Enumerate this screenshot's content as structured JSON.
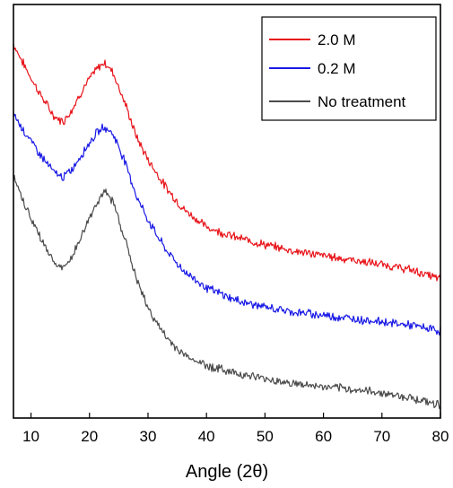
{
  "chart_data": {
    "type": "line",
    "title": "",
    "xlabel": "Angle (2θ)",
    "ylabel": "",
    "xlim": [
      7,
      80
    ],
    "ylim": [
      0,
      100
    ],
    "grid": false,
    "x_ticks": [
      10,
      20,
      30,
      40,
      50,
      60,
      70,
      80
    ],
    "legend_position": "top-right",
    "series": [
      {
        "name": "2.0 M",
        "color": "#e8141a",
        "x": [
          7,
          8,
          10,
          12,
          14,
          15.5,
          17,
          19,
          21,
          22.5,
          24,
          26,
          28,
          30,
          33,
          36,
          40,
          45,
          50,
          55,
          60,
          65,
          70,
          75,
          80
        ],
        "y": [
          90.4,
          87.6,
          82.2,
          77.3,
          72.8,
          71.7,
          74.6,
          79.9,
          84.0,
          86.0,
          83.7,
          76.4,
          68.1,
          62.5,
          55.9,
          50.6,
          46.2,
          43.7,
          41.9,
          40.4,
          39.3,
          38.2,
          37.1,
          35.8,
          33.6
        ]
      },
      {
        "name": "0.2 M",
        "color": "#1919e6",
        "x": [
          7,
          8,
          10,
          12,
          14,
          15.5,
          17,
          19,
          21,
          22.5,
          24,
          26,
          28,
          30,
          33,
          36,
          40,
          45,
          50,
          55,
          60,
          65,
          70,
          75,
          80
        ],
        "y": [
          73.8,
          71.2,
          66.9,
          62.9,
          59.3,
          58.2,
          60.1,
          64.5,
          68.6,
          70.4,
          68.8,
          62.3,
          53.8,
          47.9,
          40.8,
          35.7,
          31.5,
          28.5,
          26.8,
          25.6,
          24.9,
          24.0,
          23.3,
          22.4,
          21.1
        ]
      },
      {
        "name": "No treatment",
        "color": "#4a4a4a",
        "x": [
          7,
          8,
          10,
          12,
          14,
          15.5,
          17,
          19,
          21,
          22.5,
          24,
          26,
          28,
          30,
          33,
          36,
          40,
          45,
          50,
          55,
          60,
          65,
          70,
          75,
          80
        ],
        "y": [
          58.4,
          54.7,
          48.2,
          42.6,
          37.5,
          36.0,
          38.9,
          45.2,
          51.5,
          54.7,
          52.5,
          43.6,
          33.7,
          26.6,
          19.6,
          15.4,
          12.7,
          10.9,
          9.5,
          8.3,
          7.5,
          6.9,
          6.1,
          4.9,
          3.1
        ]
      }
    ]
  }
}
